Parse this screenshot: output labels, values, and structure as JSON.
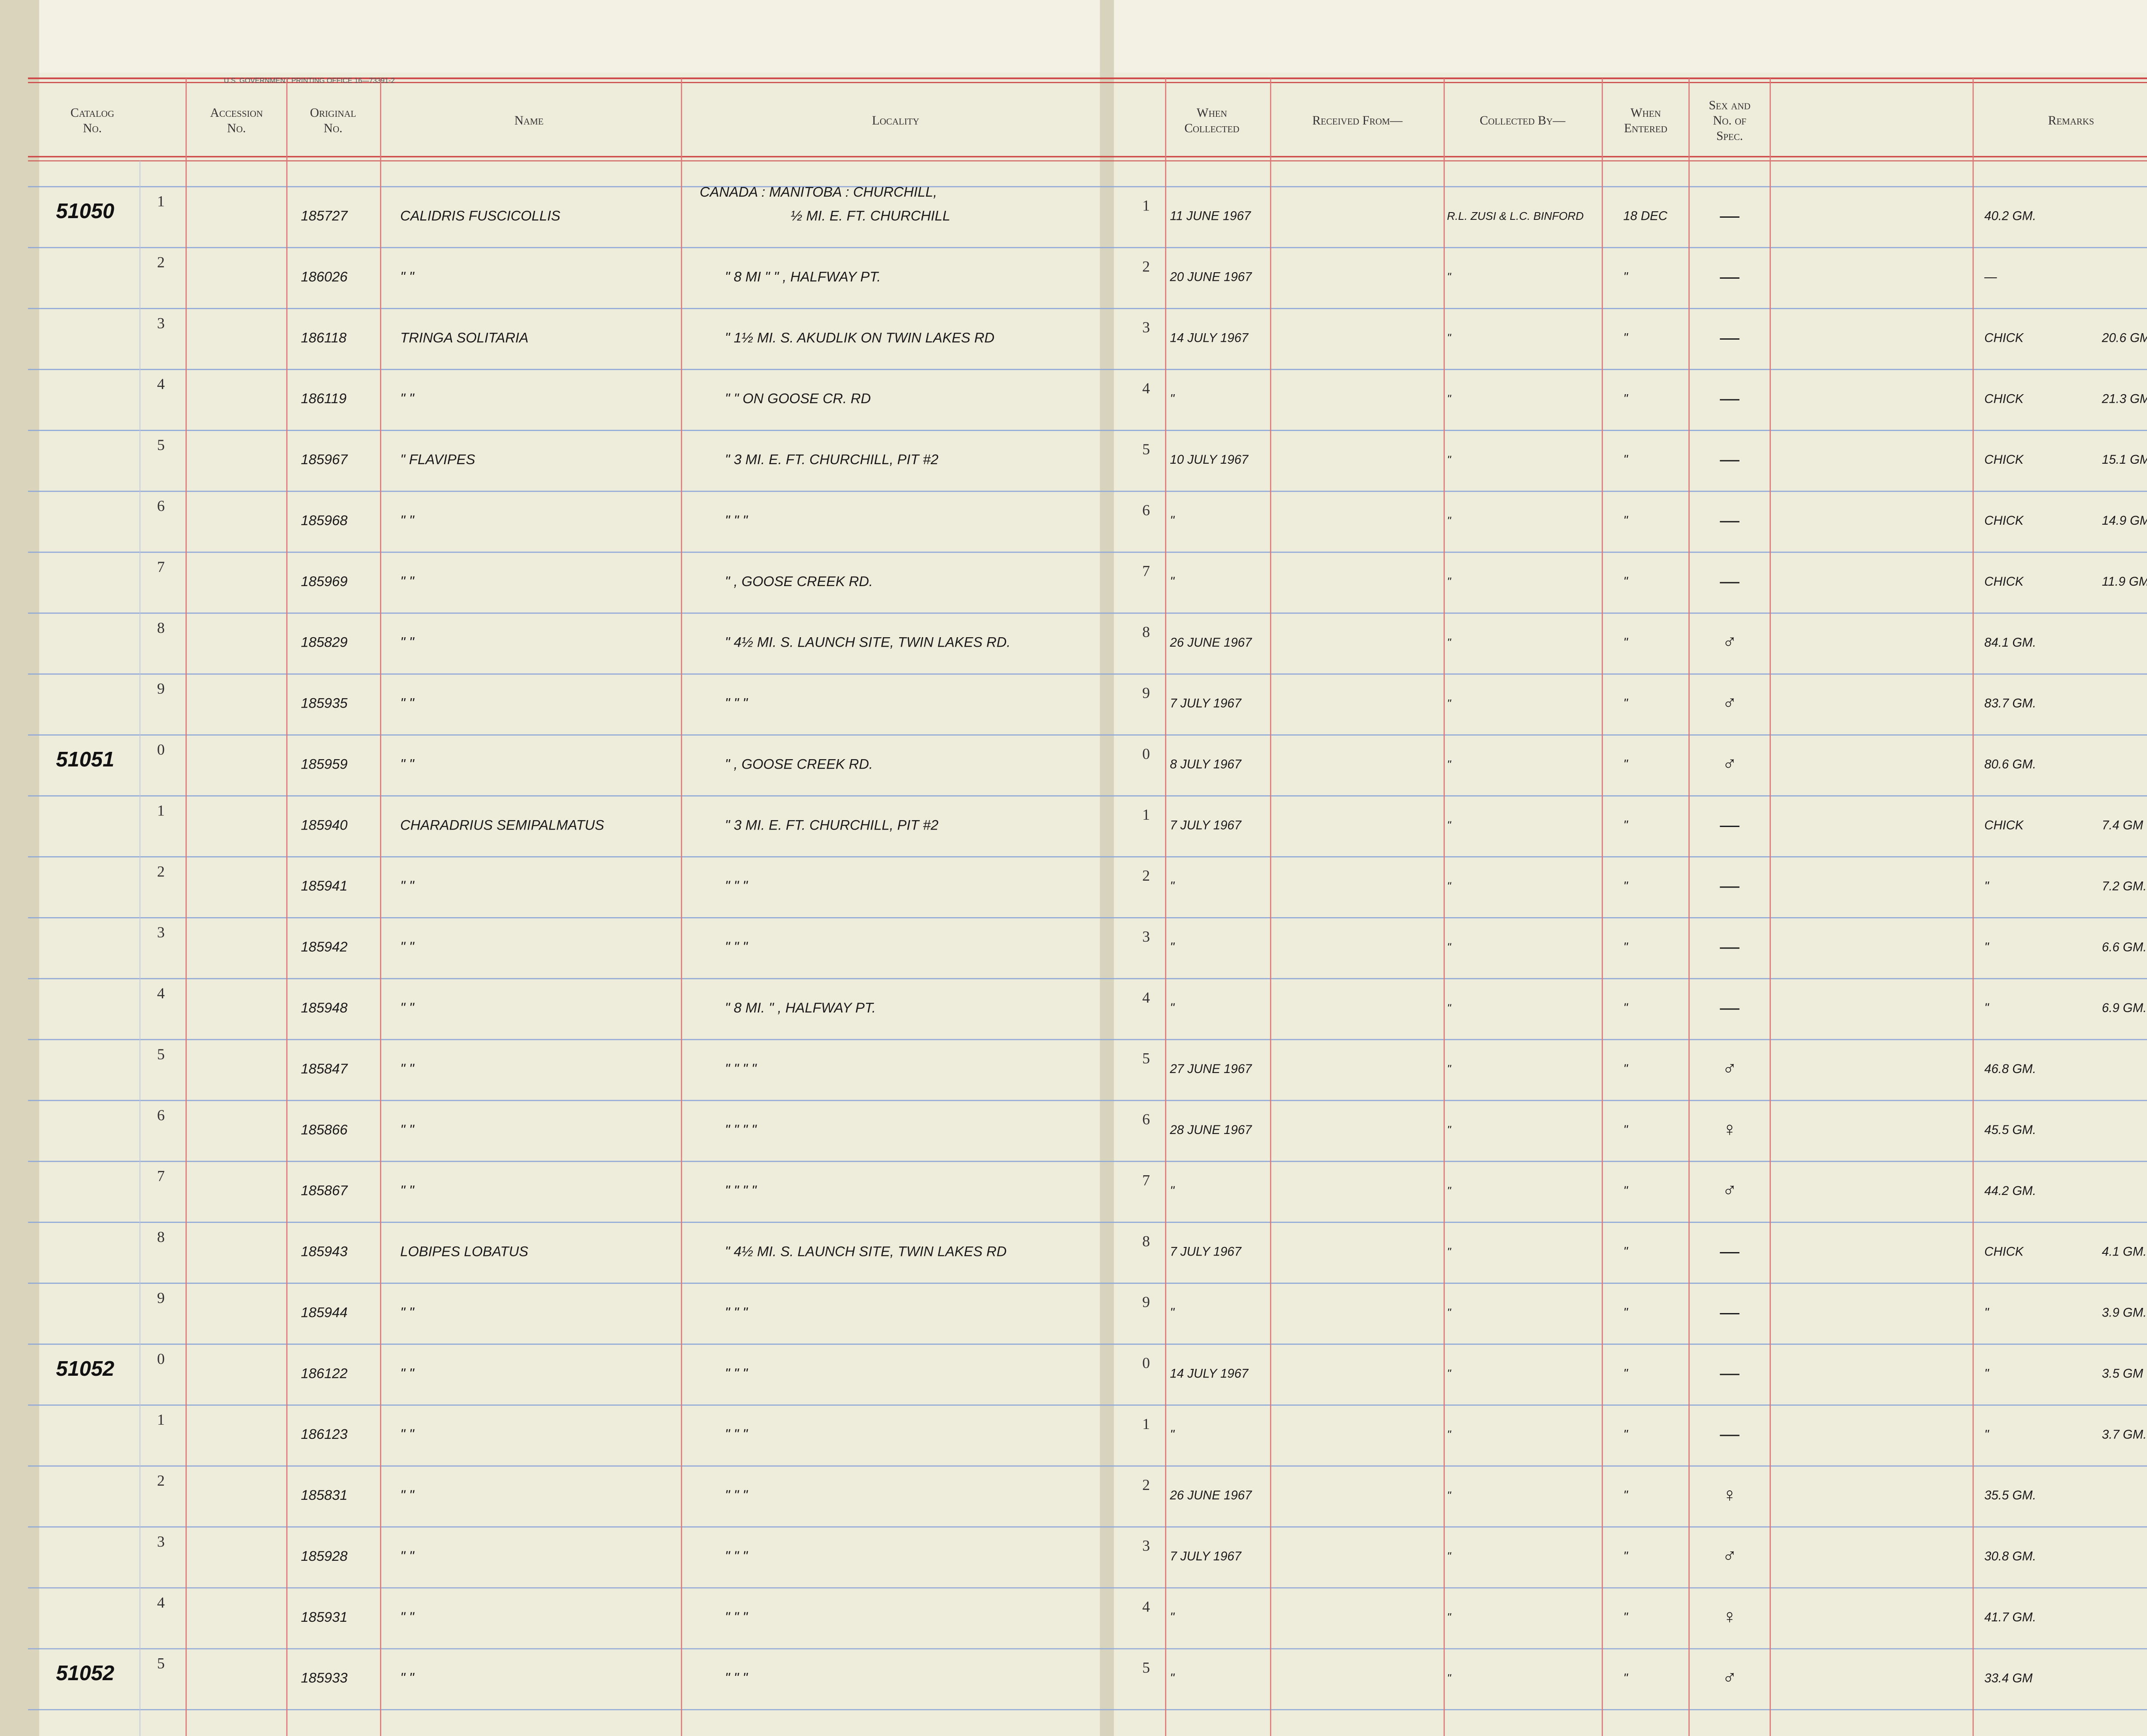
{
  "imprint": "U.S. GOVERNMENT PRINTING OFFICE    16—73391-2",
  "headers": {
    "left": [
      [
        "Catalog",
        "No."
      ],
      [
        "Accession",
        "No."
      ],
      [
        "Original",
        "No."
      ],
      [
        "Name"
      ],
      [
        "Locality"
      ]
    ],
    "right": [
      [
        "When",
        "Collected"
      ],
      [
        "Received From—"
      ],
      [
        "Collected By—"
      ],
      [
        "When",
        "Entered"
      ],
      [
        "Sex and",
        "No. of",
        "Spec."
      ],
      [
        "Remarks"
      ]
    ]
  },
  "rows": [
    {
      "catalog": "51050",
      "line": "1",
      "original": "185727",
      "name": "CALIDRIS FUSCICOLLIS",
      "locality": [
        "CANADA : MANITOBA : CHURCHILL,",
        "½ MI. E. FT. CHURCHILL"
      ],
      "collected": "11 JUNE 1967",
      "collected_by": "R.L. ZUSI & L.C. BINFORD",
      "entered": "18 DEC",
      "sex": "—",
      "remarks": "40.2 GM."
    },
    {
      "line": "2",
      "original": "186026",
      "name": "\"     \"",
      "locality": "\"    8 MI    \"    \"  , HALFWAY PT.",
      "collected": "20 JUNE 1967",
      "collected_by": "\"",
      "entered": "\"",
      "sex": "—",
      "remarks": "—"
    },
    {
      "line": "3",
      "original": "186118",
      "name": "TRINGA SOLITARIA",
      "locality": "\"  1½ MI. S. AKUDLIK ON TWIN LAKES RD",
      "collected": "14 JULY 1967",
      "collected_by": "\"",
      "entered": "\"",
      "sex": "—",
      "remarks": "CHICK",
      "weight": "20.6 GM."
    },
    {
      "line": "4",
      "original": "186119",
      "name": "\"     \"",
      "locality": "\"     \"     ON GOOSE CR. RD",
      "collected": "\"",
      "collected_by": "\"",
      "entered": "\"",
      "sex": "—",
      "remarks": "CHICK",
      "weight": "21.3 GM."
    },
    {
      "line": "5",
      "original": "185967",
      "name": "\"     FLAVIPES",
      "locality": "\"  3 MI. E. FT. CHURCHILL, PIT #2",
      "collected": "10 JULY 1967",
      "collected_by": "\"",
      "entered": "\"",
      "sex": "—",
      "remarks": "CHICK",
      "weight": "15.1 GM."
    },
    {
      "line": "6",
      "original": "185968",
      "name": "\"     \"",
      "locality": "\"      \"      \"",
      "collected": "\"",
      "collected_by": "\"",
      "entered": "\"",
      "sex": "—",
      "remarks": "CHICK",
      "weight": "14.9 GM."
    },
    {
      "line": "7",
      "original": "185969",
      "name": "\"     \"",
      "locality": "\" , GOOSE CREEK RD.",
      "collected": "\"",
      "collected_by": "\"",
      "entered": "\"",
      "sex": "—",
      "remarks": "CHICK",
      "weight": "11.9 GM."
    },
    {
      "line": "8",
      "original": "185829",
      "name": "\"     \"",
      "locality": "\"  4½ MI. S. LAUNCH SITE, TWIN LAKES RD.",
      "collected": "26 JUNE 1967",
      "collected_by": "\"",
      "entered": "\"",
      "sex": "♂",
      "remarks": "84.1 GM."
    },
    {
      "line": "9",
      "original": "185935",
      "name": "\"     \"",
      "locality": "\"      \"      \"",
      "collected": "7 JULY 1967",
      "collected_by": "\"",
      "entered": "\"",
      "sex": "♂",
      "remarks": "83.7 GM."
    },
    {
      "catalog": "51051",
      "line": "0",
      "original": "185959",
      "name": "\"     \"",
      "locality": "\" , GOOSE CREEK RD.",
      "collected": "8 JULY 1967",
      "collected_by": "\"",
      "entered": "\"",
      "sex": "♂",
      "remarks": "80.6 GM."
    },
    {
      "line": "1",
      "original": "185940",
      "name": "CHARADRIUS SEMIPALMATUS",
      "locality": "\"  3 MI. E. FT. CHURCHILL, PIT #2",
      "collected": "7 JULY 1967",
      "collected_by": "\"",
      "entered": "\"",
      "sex": "—",
      "remarks": "CHICK",
      "weight": "7.4 GM"
    },
    {
      "line": "2",
      "original": "185941",
      "name": "\"     \"",
      "locality": "\"      \"      \"",
      "collected": "\"",
      "collected_by": "\"",
      "entered": "\"",
      "sex": "—",
      "remarks": "\"",
      "weight": "7.2 GM."
    },
    {
      "line": "3",
      "original": "185942",
      "name": "\"     \"",
      "locality": "\"      \"      \"",
      "collected": "\"",
      "collected_by": "\"",
      "entered": "\"",
      "sex": "—",
      "remarks": "\"",
      "weight": "6.6 GM."
    },
    {
      "line": "4",
      "original": "185948",
      "name": "\"     \"",
      "locality": "\"  8 MI.   \"   , HALFWAY PT.",
      "collected": "\"",
      "collected_by": "\"",
      "entered": "\"",
      "sex": "—",
      "remarks": "\"",
      "weight": "6.9 GM."
    },
    {
      "line": "5",
      "original": "185847",
      "name": "\"     \"",
      "locality": "\"   \"   \"      \"",
      "collected": "27 JUNE 1967",
      "collected_by": "\"",
      "entered": "\"",
      "sex": "♂",
      "remarks": "46.8 GM."
    },
    {
      "line": "6",
      "original": "185866",
      "name": "\"     \"",
      "locality": "\"   \"   \"      \"",
      "collected": "28 JUNE 1967",
      "collected_by": "\"",
      "entered": "\"",
      "sex": "♀",
      "remarks": "45.5 GM."
    },
    {
      "line": "7",
      "original": "185867",
      "name": "\"     \"",
      "locality": "\"   \"   \"      \"",
      "collected": "\"",
      "collected_by": "\"",
      "entered": "\"",
      "sex": "♂",
      "remarks": "44.2 GM."
    },
    {
      "line": "8",
      "original": "185943",
      "name": "LOBIPES LOBATUS",
      "locality": "\"  4½ MI. S. LAUNCH SITE, TWIN LAKES RD",
      "collected": "7 JULY 1967",
      "collected_by": "\"",
      "entered": "\"",
      "sex": "—",
      "remarks": "CHICK",
      "weight": "4.1 GM."
    },
    {
      "line": "9",
      "original": "185944",
      "name": "\"     \"",
      "locality": "\"      \"      \"",
      "collected": "\"",
      "collected_by": "\"",
      "entered": "\"",
      "sex": "—",
      "remarks": "\"",
      "weight": "3.9 GM."
    },
    {
      "catalog": "51052",
      "line": "0",
      "original": "186122",
      "name": "\"     \"",
      "locality": "\"      \"      \"",
      "collected": "14 JULY 1967",
      "collected_by": "\"",
      "entered": "\"",
      "sex": "—",
      "remarks": "\"",
      "weight": "3.5 GM"
    },
    {
      "line": "1",
      "original": "186123",
      "name": "\"     \"",
      "locality": "\"      \"      \"",
      "collected": "\"",
      "collected_by": "\"",
      "entered": "\"",
      "sex": "—",
      "remarks": "\"",
      "weight": "3.7 GM."
    },
    {
      "line": "2",
      "original": "185831",
      "name": "\"     \"",
      "locality": "\"      \"      \"",
      "collected": "26 JUNE 1967",
      "collected_by": "\"",
      "entered": "\"",
      "sex": "♀",
      "remarks": "35.5 GM."
    },
    {
      "line": "3",
      "original": "185928",
      "name": "\"     \"",
      "locality": "\"      \"      \"",
      "collected": "7 JULY 1967",
      "collected_by": "\"",
      "entered": "\"",
      "sex": "♂",
      "remarks": "30.8 GM."
    },
    {
      "line": "4",
      "original": "185931",
      "name": "\"     \"",
      "locality": "\"      \"      \"",
      "collected": "\"",
      "collected_by": "\"",
      "entered": "\"",
      "sex": "♀",
      "remarks": "41.7 GM."
    },
    {
      "catalog": "51052",
      "line": "5",
      "original": "185933",
      "name": "\"     \"",
      "locality": "\"      \"      \"",
      "collected": "\"",
      "collected_by": "\"",
      "entered": "\"",
      "sex": "♂",
      "remarks": "33.4 GM"
    }
  ]
}
